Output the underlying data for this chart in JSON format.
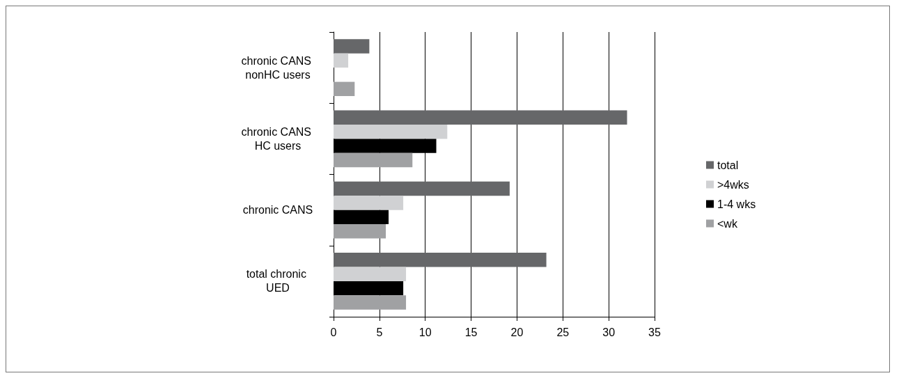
{
  "chart_data": {
    "type": "bar",
    "orientation": "horizontal",
    "categories": [
      "chronic CANS nonHC users",
      "chronic CANS HC users",
      "chronic CANS",
      "total chronic UED"
    ],
    "series": [
      {
        "name": "total",
        "color": "#666769",
        "values": [
          3.9,
          32.0,
          19.2,
          23.2
        ]
      },
      {
        "name": ">4wks",
        "color": "#d0d1d3",
        "values": [
          1.6,
          12.4,
          7.6,
          7.9
        ]
      },
      {
        "name": "1-4 wks",
        "color": "#000000",
        "values": [
          0,
          11.2,
          6.0,
          7.6
        ]
      },
      {
        "name": "<wk",
        "color": "#a0a1a3",
        "values": [
          2.3,
          8.6,
          5.7,
          7.9
        ]
      }
    ],
    "xlim": [
      0,
      35
    ],
    "xticks": [
      0,
      5,
      10,
      15,
      20,
      25,
      30,
      35
    ],
    "grid": "x",
    "legend": "right"
  }
}
